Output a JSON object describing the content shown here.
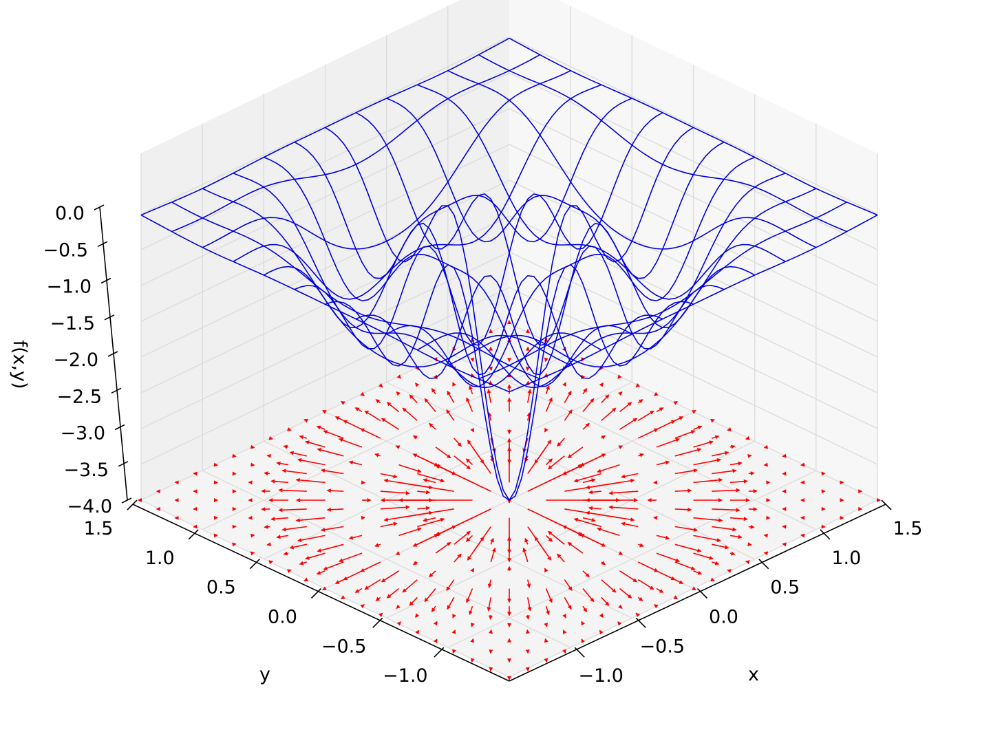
{
  "chart_data": {
    "type": "surface-wireframe-with-quiver",
    "xlabel": "x",
    "ylabel": "y",
    "zlabel": "f(x,y)",
    "xlim": [
      -1.5,
      1.5
    ],
    "ylim": [
      -1.5,
      1.5
    ],
    "zlim": [
      -4.0,
      0.0
    ],
    "x_ticks": [
      -1.0,
      -0.5,
      0.0,
      0.5,
      1.0,
      1.5
    ],
    "y_ticks": [
      -1.0,
      -0.5,
      0.0,
      0.5,
      1.0,
      1.5
    ],
    "z_ticks": [
      0.0,
      -0.5,
      -1.0,
      -1.5,
      -2.0,
      -2.5,
      -3.0,
      -3.5,
      -4.0
    ],
    "x_tick_labels": [
      "−1.0",
      "−0.5",
      "0.0",
      "0.5",
      "1.0",
      "1.5"
    ],
    "y_tick_labels": [
      "−1.0",
      "−0.5",
      "0.0",
      "0.5",
      "1.0",
      "1.5"
    ],
    "z_tick_labels": [
      "0.0",
      "−0.5",
      "−1.0",
      "−1.5",
      "−2.0",
      "−2.5",
      "−3.0",
      "−3.5",
      "−4.0"
    ],
    "surface": {
      "function": "-exp(-x^2) * 4 * cos(pi*x)^2 * ... (radial Gaussian-modulated)",
      "grid_x": [
        -1.5,
        -1.25,
        -1.0,
        -0.75,
        -0.5,
        -0.25,
        0.0,
        0.25,
        0.5,
        0.75,
        1.0,
        1.25,
        1.5
      ],
      "grid_y": [
        -1.5,
        -1.25,
        -1.0,
        -0.75,
        -0.5,
        -0.25,
        0.0,
        0.25,
        0.5,
        0.75,
        1.0,
        1.25,
        1.5
      ],
      "color": "#0000dd"
    },
    "vector_field": {
      "description": "gradient of f projected on the floor z = -4",
      "grid_step": 0.1,
      "color": "#ff0000"
    },
    "grid": true,
    "pane_color": "#f2f2f2"
  }
}
